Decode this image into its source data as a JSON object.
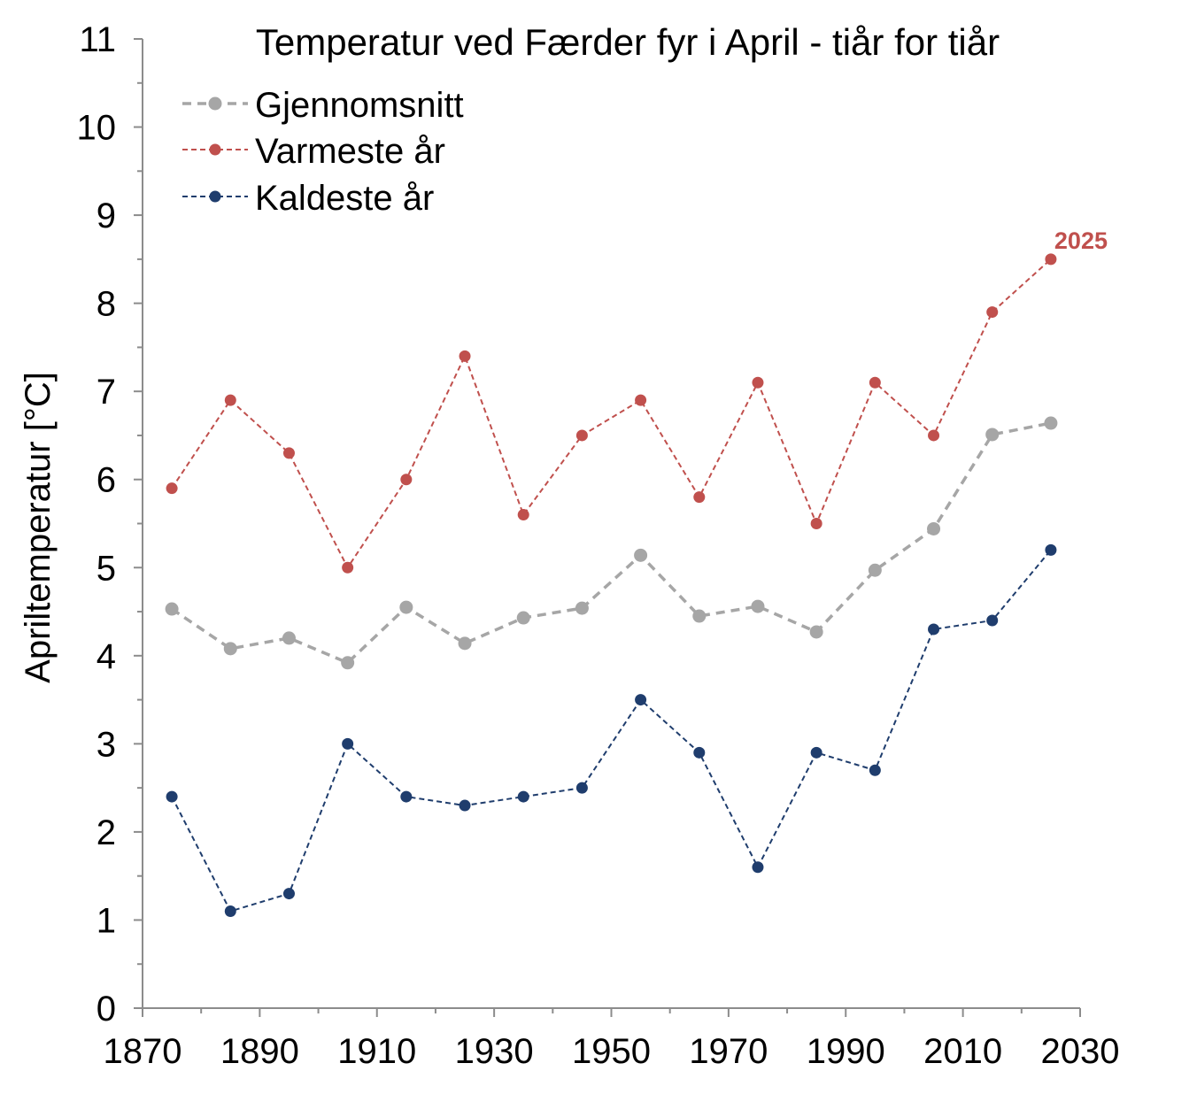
{
  "chart_data": {
    "type": "line",
    "title": "Temperatur ved Færder fyr i April - tiår for tiår",
    "xlabel": "",
    "ylabel": "Apriltemperatur [°C]",
    "xlim": [
      1870,
      2030
    ],
    "ylim": [
      0,
      11
    ],
    "x_ticks": [
      1870,
      1890,
      1910,
      1930,
      1950,
      1970,
      1990,
      2010,
      2030
    ],
    "y_ticks": [
      0,
      1,
      2,
      3,
      4,
      5,
      6,
      7,
      8,
      9,
      10,
      11
    ],
    "grid": false,
    "legend_position": "top-left",
    "x": [
      1875,
      1885,
      1895,
      1905,
      1915,
      1925,
      1935,
      1945,
      1955,
      1965,
      1975,
      1985,
      1995,
      2005,
      2015,
      2025
    ],
    "series": [
      {
        "name": "Gjennomsnitt",
        "color": "#A6A6A6",
        "values": [
          4.53,
          4.08,
          4.2,
          3.92,
          4.55,
          4.14,
          4.43,
          4.54,
          5.14,
          4.45,
          4.56,
          4.27,
          4.97,
          5.44,
          6.51,
          6.64
        ]
      },
      {
        "name": "Varmeste år",
        "color": "#C0504D",
        "values": [
          5.9,
          6.9,
          6.3,
          5.0,
          6.0,
          7.4,
          5.6,
          6.5,
          6.9,
          5.8,
          7.1,
          5.5,
          7.1,
          6.5,
          7.9,
          8.5
        ]
      },
      {
        "name": "Kaldeste år",
        "color": "#1F3D6D",
        "values": [
          2.4,
          1.1,
          1.3,
          3.0,
          2.4,
          2.3,
          2.4,
          2.5,
          3.5,
          2.9,
          1.6,
          2.9,
          2.7,
          4.3,
          4.4,
          5.2
        ]
      }
    ],
    "annotations": [
      {
        "text": "2025",
        "x": 2025,
        "y": 8.5,
        "color": "#C0504D"
      }
    ]
  }
}
